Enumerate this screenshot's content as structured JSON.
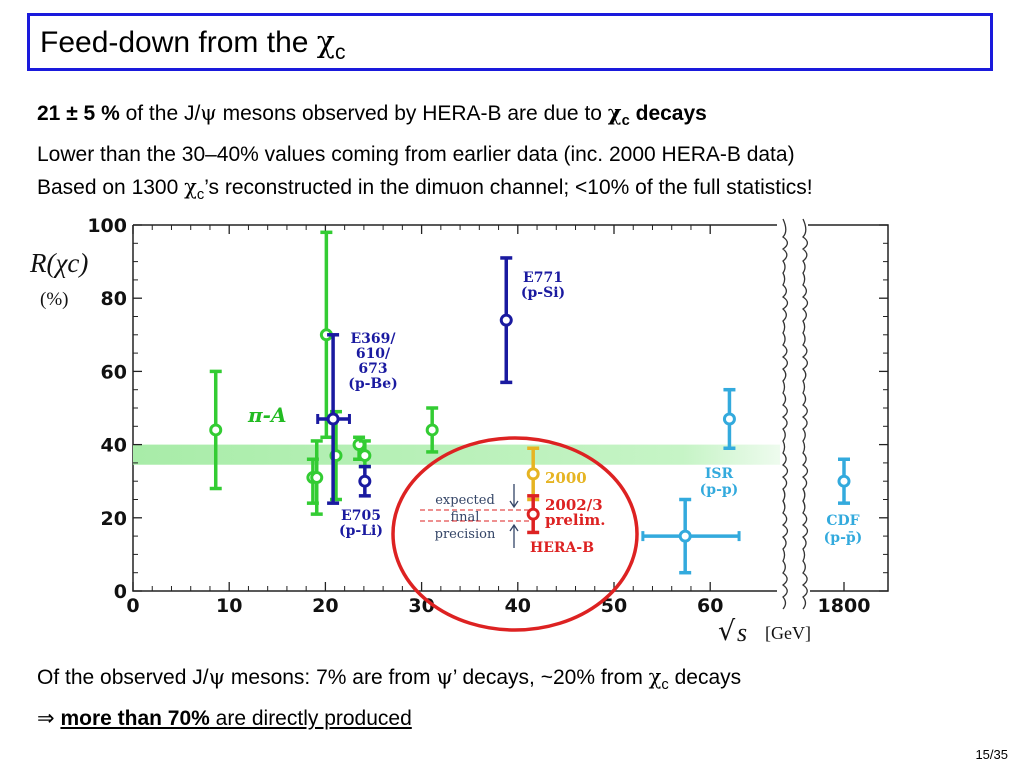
{
  "slide": {
    "title": "Feed-down from the χc",
    "title_main": "Feed-down from the ",
    "title_chi": "χ",
    "title_sub": "c",
    "line1_bold": "21 ± 5 %",
    "line1_a": " of the J/",
    "line1_psi": "ψ",
    "line1_b": " mesons observed by HERA-B are due to ",
    "line1_chi": "χ",
    "line1_sub": "c",
    "line1_c": " decays",
    "line2": "Lower than the 30–40% values coming from earlier data (inc. 2000 HERA-B data)",
    "line3_a": "Based on 1300 ",
    "line3_chi": "χ",
    "line3_sub": "c",
    "line3_b": "’s reconstructed in the dimuon channel; <10% of the full statistics!",
    "bottom1_a": "Of the observed J/",
    "bottom1_psi": "ψ",
    "bottom1_b": " mesons: 7% are from ",
    "bottom1_psi2": "ψ",
    "bottom1_c": "’ decays, ~20% from ",
    "bottom1_chi": "χ",
    "bottom1_sub": "c",
    "bottom1_d": " decays",
    "bottom2_arrow": "⇒ ",
    "bottom2_bold": "more than 70%",
    "bottom2_rest": " are directly produced",
    "page_number": "15/35"
  },
  "colors": {
    "title_border": "#1a1adc",
    "green": "#33cc33",
    "blue": "#1a1aa0",
    "cyan": "#33aadd",
    "yellow": "#e6b422",
    "red": "#dd2222",
    "band": "#b8f0b8",
    "circle": "#dd2222"
  },
  "chart_data": {
    "type": "scatter",
    "ylabel": "R(χc)",
    "ylabel_unit": "(%)",
    "xlabel": "√s [GeV]",
    "xlabel_sqrt": "√",
    "xlabel_s": "s",
    "xlabel_unit": "[GeV]",
    "ylim": [
      0,
      100
    ],
    "xlim": [
      0,
      66
    ],
    "x_ticks": [
      "0",
      "10",
      "20",
      "30",
      "40",
      "50",
      "60"
    ],
    "x_tick_break": "1800",
    "y_ticks": [
      "0",
      "20",
      "40",
      "60",
      "80",
      "100"
    ],
    "band": [
      34.5,
      40
    ],
    "series": [
      {
        "name": "π-A",
        "color": "green",
        "points": [
          {
            "x": 8.6,
            "y": 44,
            "ylo": 28,
            "yhi": 60
          },
          {
            "x": 18.7,
            "y": 31,
            "ylo": 24,
            "yhi": 36
          },
          {
            "x": 19.1,
            "y": 31,
            "ylo": 21,
            "yhi": 41
          },
          {
            "x": 20.1,
            "y": 70,
            "ylo": 42,
            "yhi": 98
          },
          {
            "x": 21.1,
            "y": 37,
            "ylo": 25,
            "yhi": 49
          },
          {
            "x": 23.5,
            "y": 40,
            "ylo": 36,
            "yhi": 42
          },
          {
            "x": 24.1,
            "y": 37,
            "ylo": 34,
            "yhi": 41
          },
          {
            "x": 31.1,
            "y": 44,
            "ylo": 38,
            "yhi": 50
          }
        ]
      },
      {
        "name": "E369/610/673 (p-Be)",
        "color": "blue",
        "points": [
          {
            "x": 20.8,
            "y": 47,
            "ylo": 24,
            "yhi": 70,
            "xlo": 19.2,
            "xhi": 22.5
          }
        ]
      },
      {
        "name": "E705 (p-Li)",
        "color": "blue",
        "points": [
          {
            "x": 24.1,
            "y": 30,
            "ylo": 26,
            "yhi": 34
          }
        ]
      },
      {
        "name": "E771 (p-Si)",
        "color": "blue",
        "points": [
          {
            "x": 38.8,
            "y": 74,
            "ylo": 57,
            "yhi": 91
          }
        ]
      },
      {
        "name": "2000",
        "color": "yellow",
        "points": [
          {
            "x": 41.6,
            "y": 32,
            "ylo": 25,
            "yhi": 39
          }
        ]
      },
      {
        "name": "2002/3 prelim.",
        "color": "red",
        "points": [
          {
            "x": 41.6,
            "y": 21,
            "ylo": 16,
            "yhi": 26
          }
        ]
      },
      {
        "name": "ISR (p-p)",
        "color": "cyan",
        "points": [
          {
            "x": 57.4,
            "y": 15,
            "ylo": 5,
            "yhi": 25,
            "xlo": 53,
            "xhi": 63
          },
          {
            "x": 62.0,
            "y": 47,
            "ylo": 39,
            "yhi": 55
          }
        ]
      },
      {
        "name": "CDF (p-p̄)",
        "color": "cyan",
        "points": [
          {
            "x": "1800",
            "y": 30,
            "ylo": 24,
            "yhi": 36
          }
        ]
      }
    ],
    "annotations": {
      "pi_a": "π-A",
      "e369": [
        "E369/",
        "610/",
        "673",
        "(p-Be)"
      ],
      "e705": [
        "E705",
        "(p-Li)"
      ],
      "e771": [
        "E771",
        "(p-Si)"
      ],
      "yr2000": "2000",
      "prelim": [
        "2002/3",
        "prelim."
      ],
      "herab": "HERA-B",
      "isr": [
        "ISR",
        "(p-p)"
      ],
      "cdf": [
        "CDF",
        "(p-p̄)"
      ],
      "expected": [
        "expected",
        "final",
        "precision"
      ]
    }
  }
}
